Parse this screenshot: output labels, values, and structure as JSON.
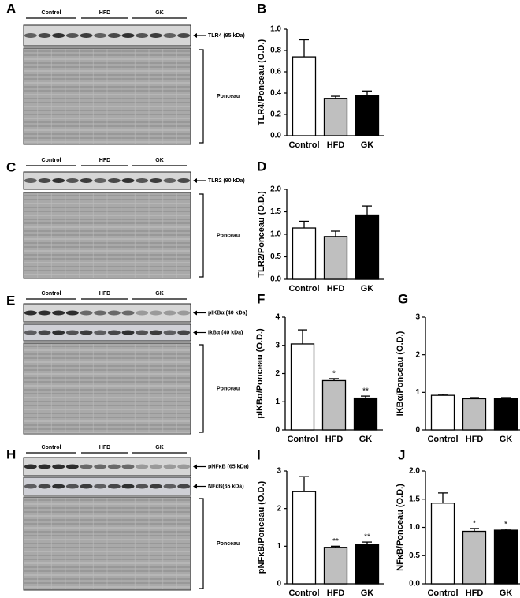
{
  "blots": [
    {
      "panel": "A",
      "groups": [
        "Control",
        "HFD",
        "GK"
      ],
      "bands": [
        "TLR4 (95 kDa)"
      ],
      "stain": "Ponceau"
    },
    {
      "panel": "C",
      "groups": [
        "Control",
        "HFD",
        "GK"
      ],
      "bands": [
        "TLR2 (90 kDa)"
      ],
      "stain": "Ponceau"
    },
    {
      "panel": "E",
      "groups": [
        "Control",
        "HFD",
        "GK"
      ],
      "bands": [
        "pIKBα (40 kDa)",
        "IkBα (40 kDa)"
      ],
      "stain": "Ponceau"
    },
    {
      "panel": "H",
      "groups": [
        "Control",
        "HFD",
        "GK"
      ],
      "bands": [
        "pNFκB (65 kDa)",
        "NFκB(65 kDa)"
      ],
      "stain": "Ponceau"
    }
  ],
  "chart_data": [
    {
      "type": "bar",
      "panel": "B",
      "ylabel": "TLR4/Ponceau (O.D.)",
      "categories": [
        "Control",
        "HFD",
        "GK"
      ],
      "values": [
        0.74,
        0.35,
        0.38
      ],
      "errors": [
        0.16,
        0.02,
        0.04
      ],
      "colors": [
        "#ffffff",
        "#bfbfbf",
        "#000000"
      ],
      "ylim": [
        0,
        1
      ],
      "yticks": [
        {
          "value": 0,
          "label": "0.0"
        },
        0.2,
        0.4,
        0.6,
        0.8,
        {
          "value": 1,
          "label": "1.0"
        }
      ]
    },
    {
      "type": "bar",
      "panel": "D",
      "ylabel": "TLR2/Ponceau (O.D.)",
      "categories": [
        "Control",
        "HFD",
        "GK"
      ],
      "values": [
        1.14,
        0.95,
        1.43
      ],
      "errors": [
        0.15,
        0.12,
        0.2
      ],
      "colors": [
        "#ffffff",
        "#bfbfbf",
        "#000000"
      ],
      "ylim": [
        0,
        2
      ],
      "yticks": [
        {
          "value": 0,
          "label": "0.0"
        },
        0.5,
        {
          "value": 1,
          "label": "1.0"
        },
        1.5,
        {
          "value": 2,
          "label": "2.0"
        }
      ]
    },
    {
      "type": "bar",
      "panel": "F",
      "ylabel": "pIKBα/Ponceau (O.D.)",
      "categories": [
        "Control",
        "HFD",
        "GK"
      ],
      "values": [
        3.05,
        1.75,
        1.13
      ],
      "errors": [
        0.5,
        0.07,
        0.07
      ],
      "colors": [
        "#ffffff",
        "#bfbfbf",
        "#000000"
      ],
      "significance": [
        null,
        "*",
        "**"
      ],
      "ylim": [
        0,
        4
      ],
      "yticks": [
        0,
        1,
        2,
        3,
        4
      ]
    },
    {
      "type": "bar",
      "panel": "G",
      "ylabel": "IKBα/Ponceau (O.D.)",
      "categories": [
        "Control",
        "HFD",
        "GK"
      ],
      "values": [
        0.92,
        0.83,
        0.83
      ],
      "errors": [
        0.03,
        0.03,
        0.03
      ],
      "colors": [
        "#ffffff",
        "#bfbfbf",
        "#000000"
      ],
      "ylim": [
        0,
        3
      ],
      "yticks": [
        0,
        1,
        2,
        3
      ]
    },
    {
      "type": "bar",
      "panel": "I",
      "ylabel": "pNFκB/Ponceau (O.D.)",
      "categories": [
        "Control",
        "HFD",
        "GK"
      ],
      "values": [
        2.45,
        0.97,
        1.05
      ],
      "errors": [
        0.4,
        0.03,
        0.06
      ],
      "colors": [
        "#ffffff",
        "#bfbfbf",
        "#000000"
      ],
      "significance": [
        null,
        "**",
        "**"
      ],
      "ylim": [
        0,
        3
      ],
      "yticks": [
        0,
        1,
        2,
        3
      ]
    },
    {
      "type": "bar",
      "panel": "J",
      "ylabel": "NFκB/Ponceau (O.D.)",
      "categories": [
        "Control",
        "HFD",
        "GK"
      ],
      "values": [
        1.43,
        0.93,
        0.95
      ],
      "errors": [
        0.18,
        0.05,
        0.02
      ],
      "colors": [
        "#ffffff",
        "#bfbfbf",
        "#000000"
      ],
      "significance": [
        null,
        "*",
        "*"
      ],
      "ylim": [
        0,
        2
      ],
      "yticks": [
        {
          "value": 0,
          "label": "0.0"
        },
        0.5,
        {
          "value": 1,
          "label": "1.0"
        },
        1.5,
        {
          "value": 2,
          "label": "2.0"
        }
      ]
    }
  ]
}
